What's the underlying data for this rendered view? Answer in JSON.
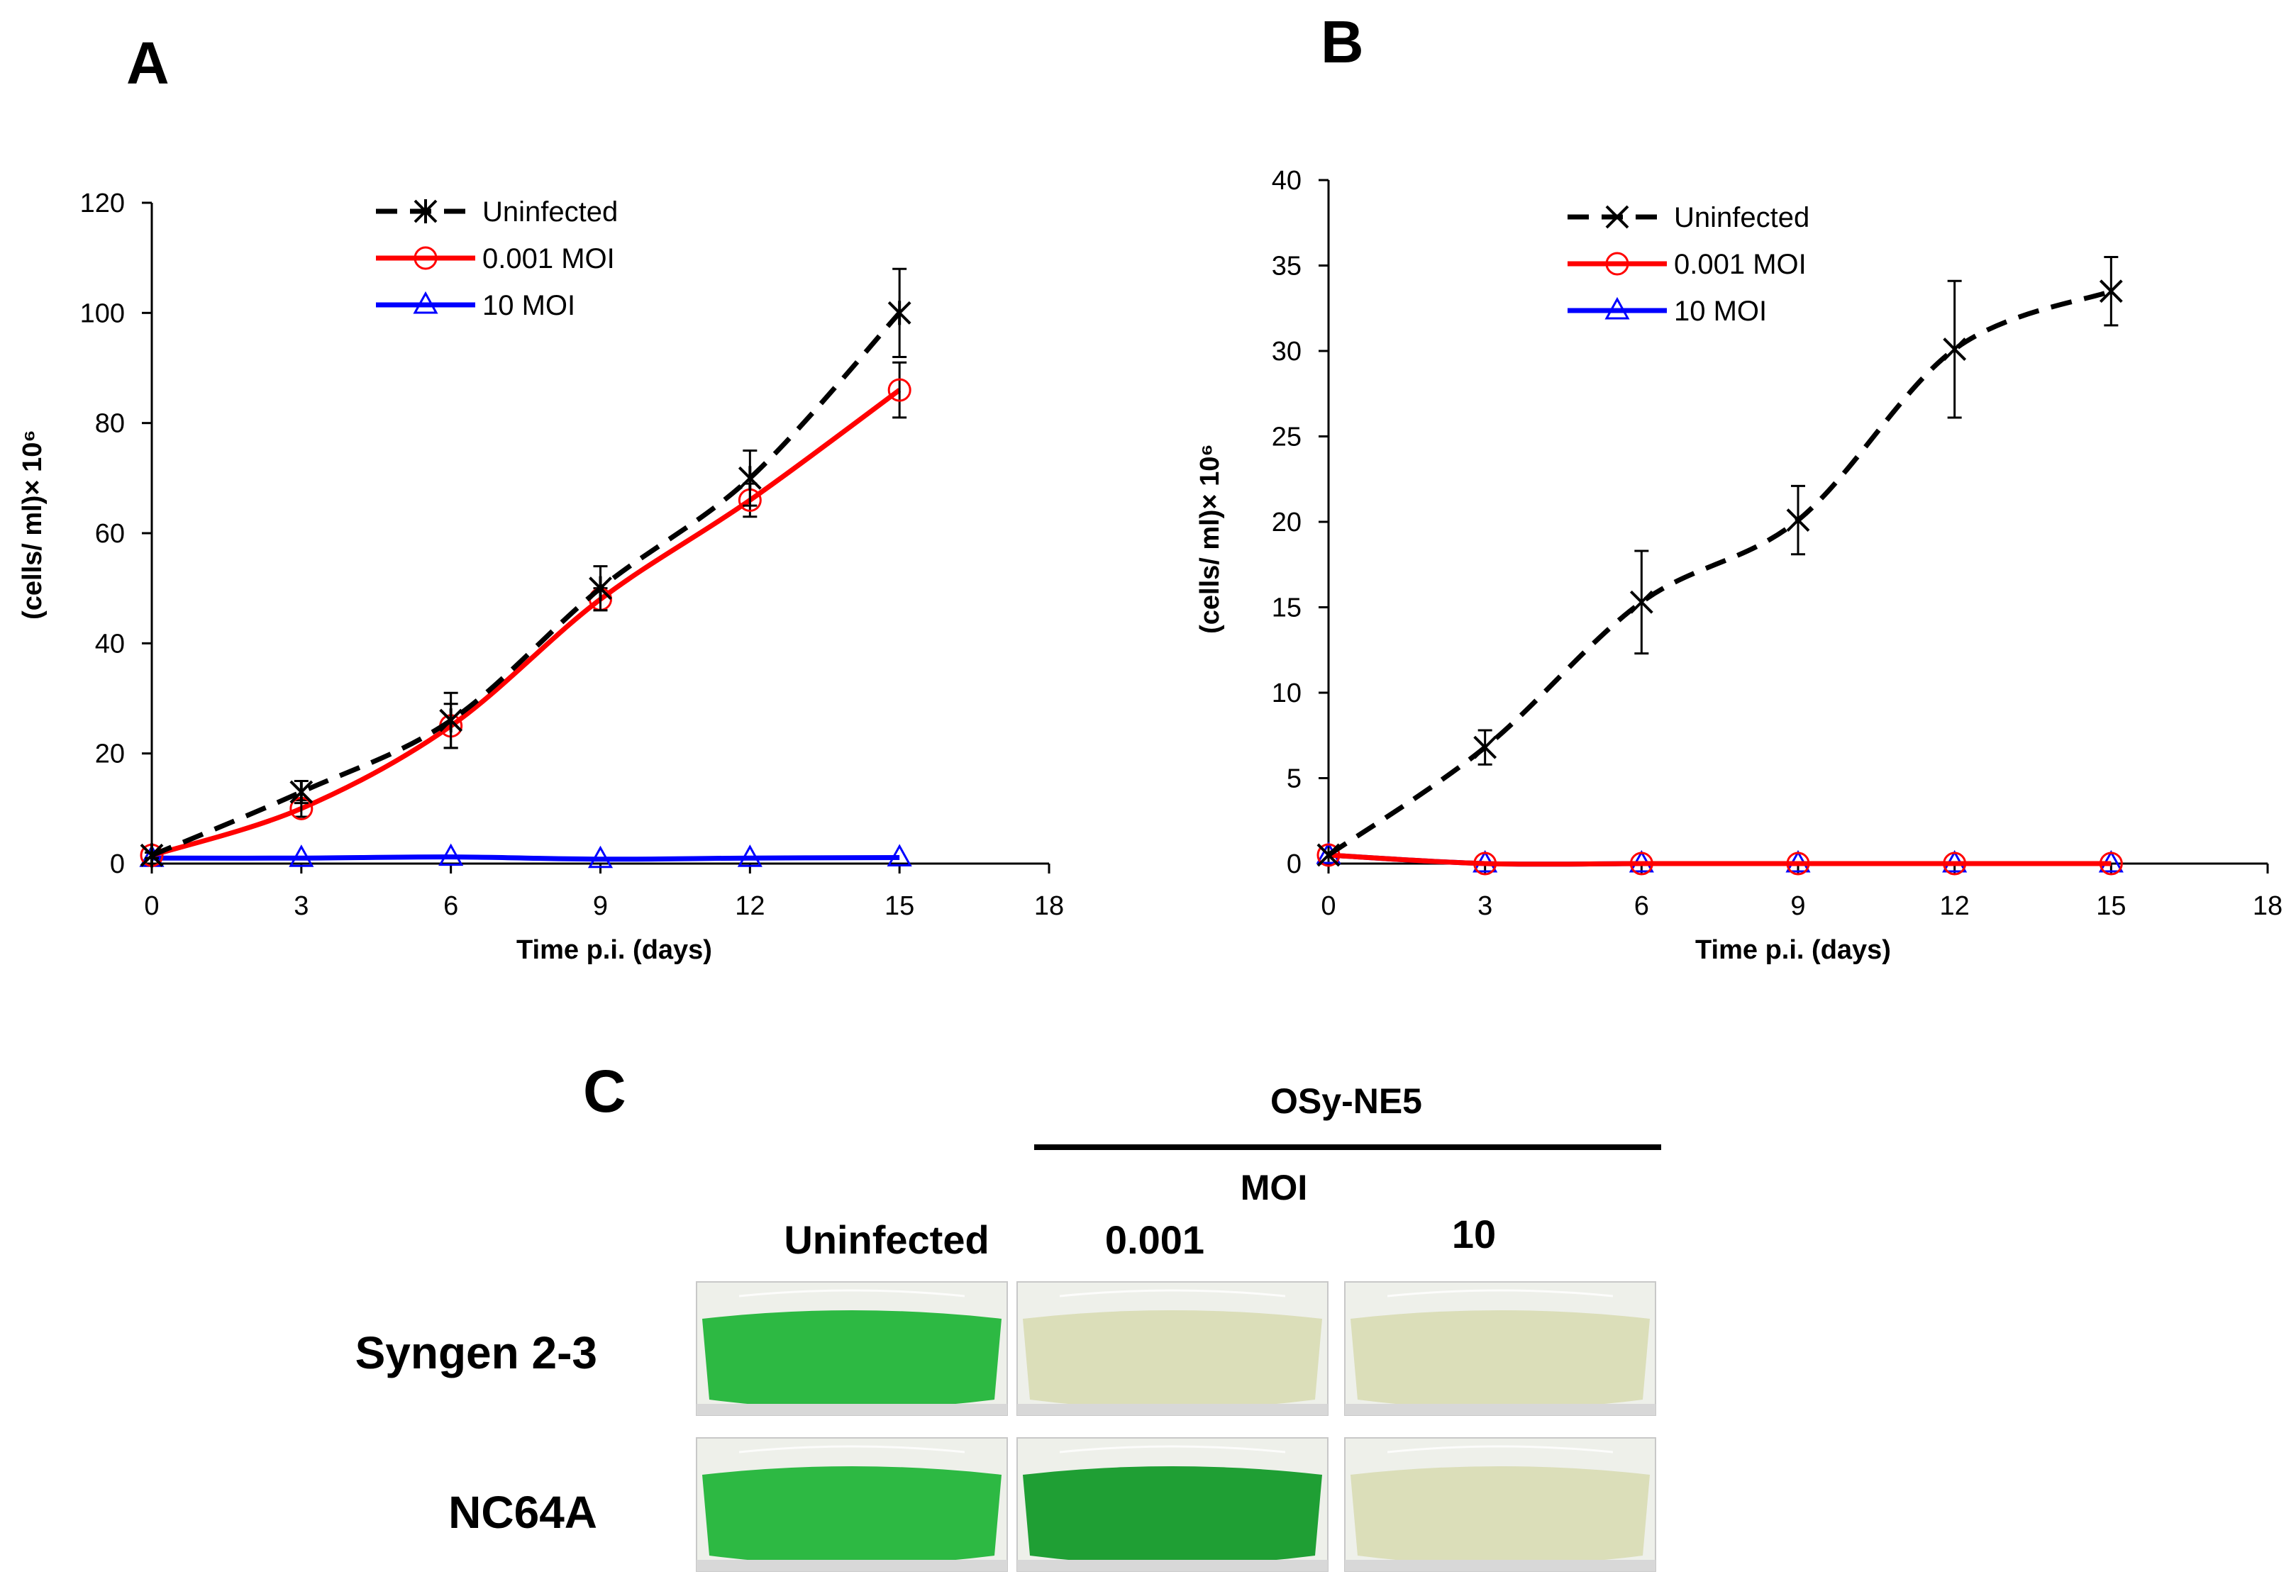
{
  "chart_data": [
    {
      "panel": "A",
      "type": "line",
      "xlabel": "Time p.i. (days)",
      "ylabel": "(cells/ ml)× 10⁶",
      "xlim": [
        0,
        18
      ],
      "ylim": [
        0,
        120
      ],
      "xticks": [
        "0",
        "3",
        "6",
        "9",
        "12",
        "15",
        "18"
      ],
      "yticks": [
        "0",
        "20",
        "40",
        "60",
        "80",
        "100",
        "120"
      ],
      "grid": false,
      "legend_position": "top-center",
      "x": [
        0,
        3,
        6,
        9,
        12,
        15
      ],
      "series": [
        {
          "name": "Uninfected",
          "color": "#000000",
          "dash": true,
          "marker": "asterisk",
          "values": [
            1.5,
            13,
            26,
            50,
            70,
            100
          ],
          "errors": [
            0.5,
            2,
            5,
            4,
            5,
            8
          ]
        },
        {
          "name": "0.001 MOI",
          "color": "#ff0000",
          "dash": false,
          "marker": "circle",
          "values": [
            1.5,
            10,
            25,
            48,
            66,
            86
          ],
          "errors": [
            0.5,
            1.5,
            4,
            2,
            3,
            5
          ]
        },
        {
          "name": "10 MOI",
          "color": "#0000ff",
          "dash": false,
          "marker": "triangle",
          "values": [
            1,
            1,
            1.2,
            0.8,
            1,
            1.1
          ],
          "errors": [
            0,
            0,
            0,
            0,
            0,
            0
          ]
        }
      ]
    },
    {
      "panel": "B",
      "type": "line",
      "xlabel": "Time p.i. (days)",
      "ylabel": "(cells/ ml)× 10⁶",
      "xlim": [
        0,
        18
      ],
      "ylim": [
        0,
        40
      ],
      "xticks": [
        "0",
        "3",
        "6",
        "9",
        "12",
        "15",
        "18"
      ],
      "yticks": [
        "0",
        "5",
        "10",
        "15",
        "20",
        "25",
        "30",
        "35",
        "40"
      ],
      "grid": false,
      "legend_position": "top-center",
      "x": [
        0,
        3,
        6,
        9,
        12,
        15
      ],
      "series": [
        {
          "name": "Uninfected",
          "color": "#000000",
          "dash": true,
          "marker": "x",
          "values": [
            0.5,
            6.8,
            15.3,
            20.1,
            30.1,
            33.5
          ],
          "errors": [
            0,
            1,
            3,
            2,
            4,
            2
          ]
        },
        {
          "name": "0.001 MOI",
          "color": "#ff0000",
          "dash": false,
          "marker": "circle",
          "values": [
            0.5,
            0,
            0,
            0,
            0,
            0
          ],
          "errors": [
            0,
            0,
            0,
            0,
            0,
            0
          ]
        },
        {
          "name": "10 MOI",
          "color": "#0000ff",
          "dash": false,
          "marker": "triangle",
          "values": [
            0.5,
            0,
            0,
            0,
            0,
            0
          ],
          "errors": [
            0,
            0,
            0,
            0,
            0,
            0
          ]
        }
      ]
    }
  ],
  "panel_c": {
    "letter": "C",
    "virus": "OSy-NE5",
    "moi_label": "MOI",
    "columns": [
      "Uninfected",
      "0.001",
      "10"
    ],
    "rows": [
      {
        "label": "Syngen 2-3",
        "flasks": [
          "green",
          "pale",
          "pale"
        ]
      },
      {
        "label": "NC64A",
        "flasks": [
          "green",
          "dark-green",
          "pale"
        ]
      }
    ],
    "flask_colors": {
      "green": "#22b53a",
      "dark-green": "#139a2a",
      "pale": "#d9dcb6"
    }
  }
}
